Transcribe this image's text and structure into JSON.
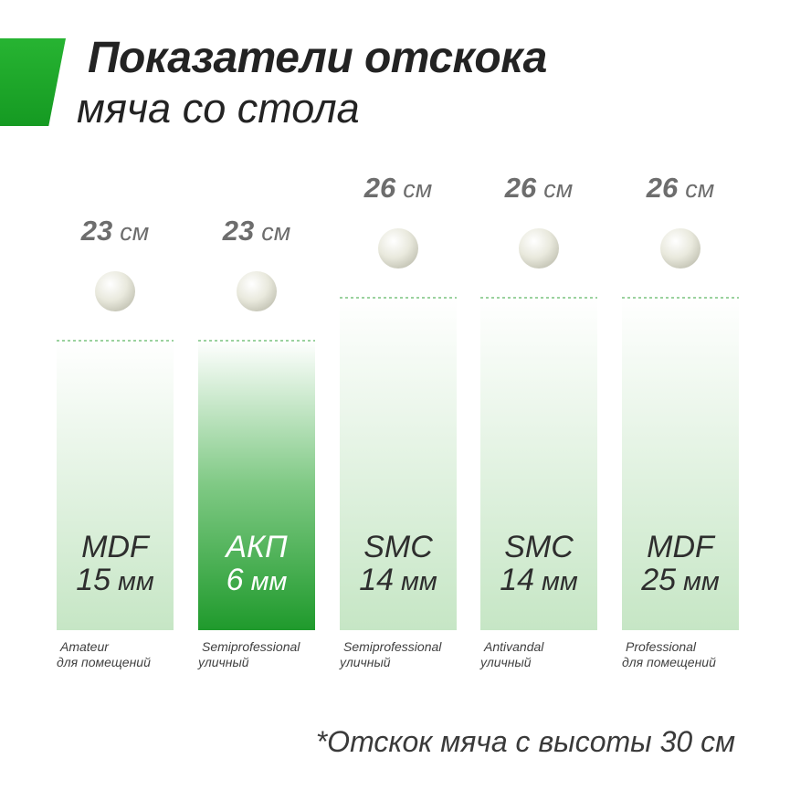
{
  "header": {
    "title": "Показатели отскока",
    "subtitle": "мяча со стола"
  },
  "colors": {
    "accent": "#1aa52a",
    "bar_light": "#c9e8c8",
    "bar_highlight": "#2aa136",
    "ball": "#e8e8dc"
  },
  "chart_data": {
    "type": "bar",
    "unit": "см",
    "ylim": [
      0,
      30
    ],
    "grid": false,
    "legend": "none",
    "categories": [
      "MDF 15 мм",
      "АКП 6 мм",
      "SMC 14 мм",
      "SMC 14 мм",
      "MDF 25 мм"
    ],
    "values": [
      23,
      23,
      26,
      26,
      26
    ],
    "bars": [
      {
        "material": "MDF",
        "thickness": "15",
        "thickness_unit": "мм",
        "value": 23,
        "label_unit": "см",
        "class_name": "Amateur",
        "usage": "для помещений",
        "highlight": false
      },
      {
        "material": "АКП",
        "thickness": "6",
        "thickness_unit": "мм",
        "value": 23,
        "label_unit": "см",
        "class_name": "Semiprofessional",
        "usage": "уличный",
        "highlight": true
      },
      {
        "material": "SMC",
        "thickness": "14",
        "thickness_unit": "мм",
        "value": 26,
        "label_unit": "см",
        "class_name": "Semiprofessional",
        "usage": "уличный",
        "highlight": false
      },
      {
        "material": "SMC",
        "thickness": "14",
        "thickness_unit": "мм",
        "value": 26,
        "label_unit": "см",
        "class_name": "Antivandal",
        "usage": "уличный",
        "highlight": false
      },
      {
        "material": "MDF",
        "thickness": "25",
        "thickness_unit": "мм",
        "value": 26,
        "label_unit": "см",
        "class_name": "Professional",
        "usage": "для помещений",
        "highlight": false
      }
    ]
  },
  "footnote": "*Отскок мяча с высоты 30 см"
}
